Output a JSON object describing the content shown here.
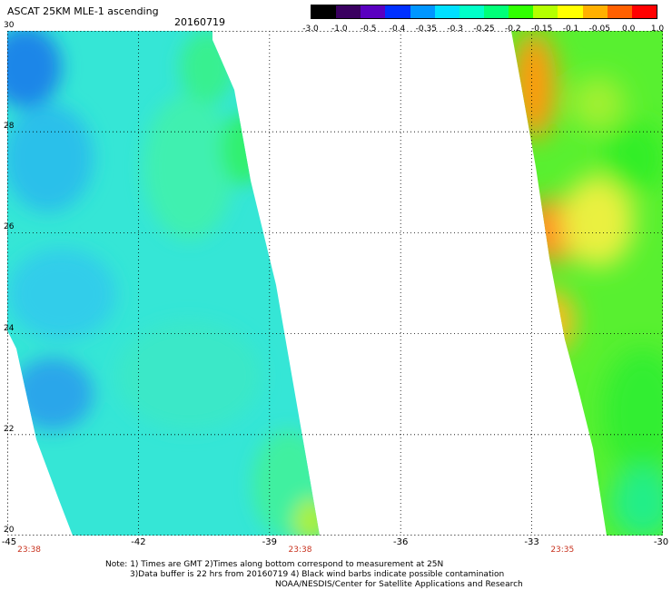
{
  "title": "ASCAT 25KM MLE-1 ascending",
  "date": "20160719",
  "colorbar": {
    "labels": [
      "-3.0",
      "-1.0",
      "-0.5",
      "-0.4",
      "-0.35",
      "-0.3",
      "-0.25",
      "-0.2",
      "-0.15",
      "-0.1",
      "-0.05",
      "0.0",
      "1.0"
    ],
    "colors": [
      "#000000",
      "#3a0060",
      "#5a00c0",
      "#0030ff",
      "#0096ff",
      "#00e0ff",
      "#00ffc8",
      "#00ff78",
      "#30ff00",
      "#b4ff00",
      "#ffff00",
      "#ffb000",
      "#ff6000",
      "#ff0000"
    ]
  },
  "map": {
    "lat_labels": [
      "30",
      "28",
      "26",
      "24",
      "22",
      "20"
    ],
    "lon_labels": [
      "-45",
      "-42",
      "-39",
      "-36",
      "-33",
      "-30"
    ],
    "lat_range": [
      20,
      30
    ],
    "lon_range": [
      -45,
      -30
    ],
    "times": [
      "23:38",
      "23:38",
      "23:35"
    ],
    "gridlines": true
  },
  "notes": [
    "Note: 1) Times are GMT 2)Times along bottom correspond to measurement at 25N",
    "3)Data buffer is 22 hrs from 20160719 4) Black wind barbs indicate possible contamination",
    "NOAA/NESDIS/Center for Satellite Applications and Research"
  ]
}
